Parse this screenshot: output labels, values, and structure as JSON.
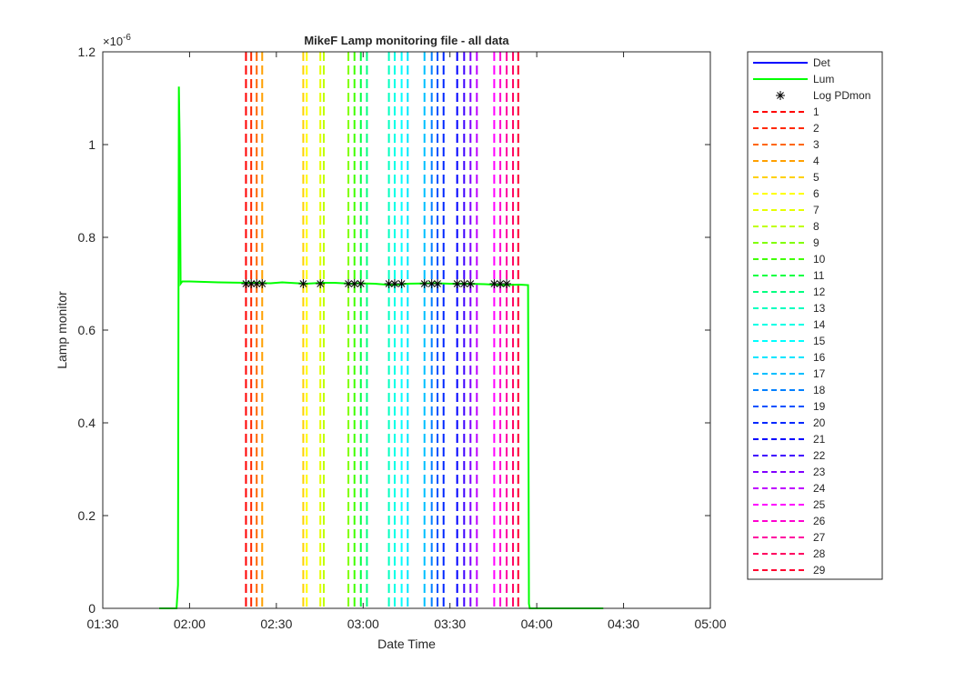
{
  "chart_data": {
    "type": "line",
    "title": "MikeF Lamp monitoring file - all data",
    "xlabel": "Date Time",
    "ylabel": "Lamp monitor",
    "y_exponent_label": "×10",
    "y_exponent_power": "-6",
    "y_scale": 1e-06,
    "xlim_minutes": [
      90,
      300
    ],
    "ylim": [
      0,
      1.2
    ],
    "x_ticks": [
      {
        "m": 90,
        "label": "01:30"
      },
      {
        "m": 120,
        "label": "02:00"
      },
      {
        "m": 150,
        "label": "02:30"
      },
      {
        "m": 180,
        "label": "03:00"
      },
      {
        "m": 210,
        "label": "03:30"
      },
      {
        "m": 240,
        "label": "04:00"
      },
      {
        "m": 270,
        "label": "04:30"
      },
      {
        "m": 300,
        "label": "05:00"
      }
    ],
    "y_ticks": [
      {
        "v": 0,
        "label": "0"
      },
      {
        "v": 0.2,
        "label": "0.2"
      },
      {
        "v": 0.4,
        "label": "0.4"
      },
      {
        "v": 0.6,
        "label": "0.6"
      },
      {
        "v": 0.8,
        "label": "0.8"
      },
      {
        "v": 1.0,
        "label": "1"
      },
      {
        "v": 1.2,
        "label": "1.2"
      }
    ],
    "grid": false,
    "legend_position": "outside-right",
    "series": [
      {
        "name": "Det",
        "color": "#0000ff",
        "points": []
      },
      {
        "name": "Lum",
        "color": "#00ff00",
        "points": [
          [
            109.5,
            0
          ],
          [
            115.5,
            0
          ],
          [
            116,
            0.05
          ],
          [
            116.3,
            1.125
          ],
          [
            116.6,
            1.0
          ],
          [
            116.9,
            0.7
          ],
          [
            117.5,
            0.705
          ],
          [
            120,
            0.705
          ],
          [
            130,
            0.703
          ],
          [
            140,
            0.702
          ],
          [
            148,
            0.701
          ],
          [
            152,
            0.703
          ],
          [
            160,
            0.7
          ],
          [
            166,
            0.702
          ],
          [
            170,
            0.702
          ],
          [
            176,
            0.7
          ],
          [
            178,
            0.701
          ],
          [
            184,
            0.7
          ],
          [
            188,
            0.698
          ],
          [
            190,
            0.697
          ],
          [
            195,
            0.7
          ],
          [
            205,
            0.701
          ],
          [
            210,
            0.7
          ],
          [
            216,
            0.7
          ],
          [
            222,
            0.699
          ],
          [
            228,
            0.697
          ],
          [
            234,
            0.698
          ],
          [
            237,
            0.697
          ],
          [
            237.3,
            0.01
          ],
          [
            237.6,
            0
          ],
          [
            243,
            0
          ],
          [
            262,
            0
          ],
          [
            263,
            0
          ]
        ]
      }
    ],
    "log_pdmon": {
      "name": "Log PDmon",
      "y": 0.7,
      "x": [
        139.5,
        141.3,
        143.2,
        145.1,
        159.3,
        165.2,
        174.9,
        177.0,
        179.2,
        188.9,
        190.9,
        193.3,
        201.2,
        203.7,
        205.7,
        212.5,
        214.9,
        217.1,
        225.3,
        227.4,
        229.6
      ]
    },
    "markers": [
      {
        "label": "1",
        "color": "#ff0000",
        "x": 139.5
      },
      {
        "label": "2",
        "color": "#ff2800",
        "x": 141.3
      },
      {
        "label": "3",
        "color": "#ff6600",
        "x": 143.2
      },
      {
        "label": "4",
        "color": "#ffa000",
        "x": 145.1
      },
      {
        "label": "5",
        "color": "#ffd000",
        "x": 159.3
      },
      {
        "label": "6",
        "color": "#ffff00",
        "x": 160.5
      },
      {
        "label": "7",
        "color": "#e6ff00",
        "x": 165.2
      },
      {
        "label": "8",
        "color": "#bfff00",
        "x": 166.4
      },
      {
        "label": "9",
        "color": "#80ff00",
        "x": 174.9
      },
      {
        "label": "10",
        "color": "#40ff00",
        "x": 177.0
      },
      {
        "label": "11",
        "color": "#00ff40",
        "x": 179.2
      },
      {
        "label": "12",
        "color": "#00ff80",
        "x": 181.3
      },
      {
        "label": "13",
        "color": "#00ffbf",
        "x": 188.9
      },
      {
        "label": "14",
        "color": "#00ffe6",
        "x": 190.9
      },
      {
        "label": "15",
        "color": "#00ffff",
        "x": 193.3
      },
      {
        "label": "16",
        "color": "#00e6ff",
        "x": 195.4
      },
      {
        "label": "17",
        "color": "#00bfff",
        "x": 201.2
      },
      {
        "label": "18",
        "color": "#0080ff",
        "x": 203.7
      },
      {
        "label": "19",
        "color": "#0050ff",
        "x": 205.7
      },
      {
        "label": "20",
        "color": "#0028ff",
        "x": 207.8
      },
      {
        "label": "21",
        "color": "#0000ff",
        "x": 212.5
      },
      {
        "label": "22",
        "color": "#4000ff",
        "x": 214.9
      },
      {
        "label": "23",
        "color": "#8000ff",
        "x": 217.1
      },
      {
        "label": "24",
        "color": "#bf00ff",
        "x": 219.3
      },
      {
        "label": "25",
        "color": "#ff00ff",
        "x": 225.3
      },
      {
        "label": "26",
        "color": "#ff00d0",
        "x": 227.4
      },
      {
        "label": "27",
        "color": "#ff00a0",
        "x": 229.6
      },
      {
        "label": "28",
        "color": "#ff0060",
        "x": 231.8
      },
      {
        "label": "29",
        "color": "#ff0030",
        "x": 233.6
      }
    ]
  }
}
